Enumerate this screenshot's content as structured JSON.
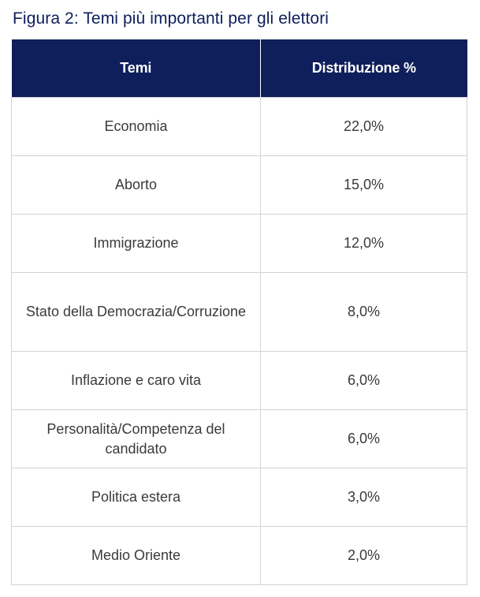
{
  "title": "Figura 2: Temi più importanti per gli elettori",
  "table": {
    "headers": [
      "Temi",
      "Distribuzione %"
    ],
    "rows": [
      {
        "tema": "Economia",
        "valore": "22,0%"
      },
      {
        "tema": "Aborto",
        "valore": "15,0%"
      },
      {
        "tema": "Immigrazione",
        "valore": "12,0%"
      },
      {
        "tema": "Stato della Democrazia/Corruzione",
        "valore": "8,0%"
      },
      {
        "tema": "Inflazione e caro vita",
        "valore": "6,0%"
      },
      {
        "tema": "Personalità/Competenza del candidato",
        "valore": "6,0%"
      },
      {
        "tema": "Politica estera",
        "valore": "3,0%"
      },
      {
        "tema": "Medio Oriente",
        "valore": "2,0%"
      }
    ]
  },
  "colors": {
    "header_bg": "#0e1f5b",
    "title_color": "#0e1f5b",
    "text": "#3a3a3a",
    "border": "#d3d3d3"
  },
  "chart_data": {
    "type": "table",
    "title": "Figura 2: Temi più importanti per gli elettori",
    "columns": [
      "Temi",
      "Distribuzione %"
    ],
    "categories": [
      "Economia",
      "Aborto",
      "Immigrazione",
      "Stato della Democrazia/Corruzione",
      "Inflazione e caro vita",
      "Personalità/Competenza del candidato",
      "Politica estera",
      "Medio Oriente"
    ],
    "values": [
      22.0,
      15.0,
      12.0,
      8.0,
      6.0,
      6.0,
      3.0,
      2.0
    ]
  }
}
